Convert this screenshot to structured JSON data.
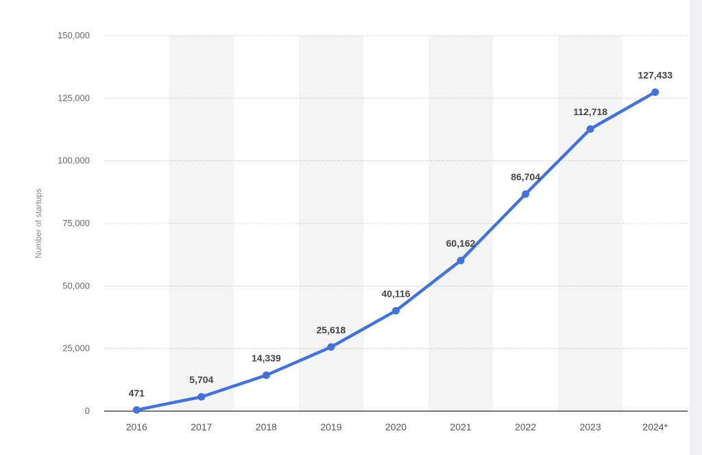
{
  "chart_data": {
    "type": "line",
    "categories": [
      "2016",
      "2017",
      "2018",
      "2019",
      "2020",
      "2021",
      "2022",
      "2023",
      "2024*"
    ],
    "series": [
      {
        "values": [
          471,
          5704,
          14339,
          25618,
          40116,
          60162,
          86704,
          112718,
          127433
        ]
      }
    ],
    "data_labels": [
      "471",
      "5,704",
      "14,339",
      "25,618",
      "40,116",
      "60,162",
      "86,704",
      "112,718",
      "127,433"
    ],
    "ylabel": "Number of startups",
    "xlabel": "",
    "ylim": [
      0,
      150000
    ],
    "y_ticks": [
      0,
      25000,
      50000,
      75000,
      100000,
      125000,
      150000
    ],
    "y_tick_labels": [
      "0",
      "25,000",
      "50,000",
      "75,000",
      "100,000",
      "125,000",
      "150,000"
    ],
    "grid": true,
    "line_color": "#4373d6",
    "band_color": "#f3f4f6",
    "grid_color": "#c8c8c8"
  }
}
